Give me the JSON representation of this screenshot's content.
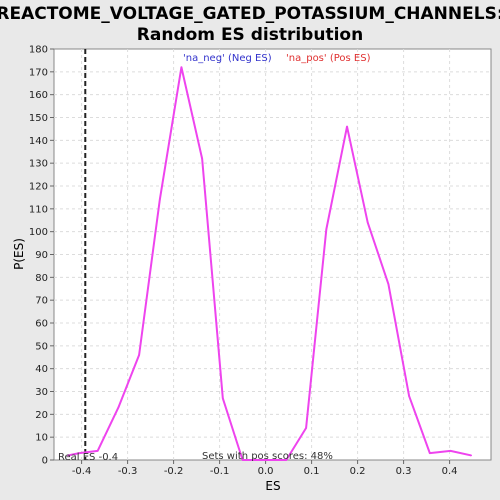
{
  "chart_data": {
    "type": "line",
    "title": [
      "REACTOME_VOLTAGE_GATED_POTASSIUM_CHANNELS:",
      "Random ES distribution"
    ],
    "xlabel": "ES",
    "ylabel": "P(ES)",
    "xlim": [
      -0.46,
      0.49
    ],
    "ylim": [
      0,
      180
    ],
    "xticks": [
      -0.4,
      -0.3,
      -0.2,
      -0.1,
      0.0,
      0.1,
      0.2,
      0.3,
      0.4
    ],
    "xtick_labels": [
      "-0.4",
      "-0.3",
      "-0.2",
      "-0.1",
      "0.0",
      "0.1",
      "0.2",
      "0.3",
      "0.4"
    ],
    "yticks": [
      0,
      10,
      20,
      30,
      40,
      50,
      60,
      70,
      80,
      90,
      100,
      110,
      120,
      130,
      140,
      150,
      160,
      170,
      180
    ],
    "grid": true,
    "legend": [
      {
        "label": "'na_neg' (Neg ES)",
        "color": "#3333cc"
      },
      {
        "label": "'na_pos' (Pos ES)",
        "color": "#e03030"
      }
    ],
    "series": [
      {
        "color": "#ee44ee",
        "x": [
          -0.43,
          -0.405,
          -0.365,
          -0.32,
          -0.275,
          -0.23,
          -0.183,
          -0.138,
          -0.093,
          -0.05,
          0.0,
          0.045,
          0.088,
          0.132,
          0.177,
          0.222,
          0.267,
          0.312,
          0.357,
          0.402,
          0.447
        ],
        "y": [
          2,
          3,
          4,
          23,
          46,
          114,
          172,
          132,
          27,
          0,
          0,
          0,
          14,
          101,
          146,
          104,
          77,
          28,
          3,
          4,
          2
        ]
      }
    ],
    "real_es": -0.392,
    "annotations": {
      "real_es_label": "Real ES -0.4",
      "pos_scores_label": "Sets with pos scores: 48%"
    }
  }
}
